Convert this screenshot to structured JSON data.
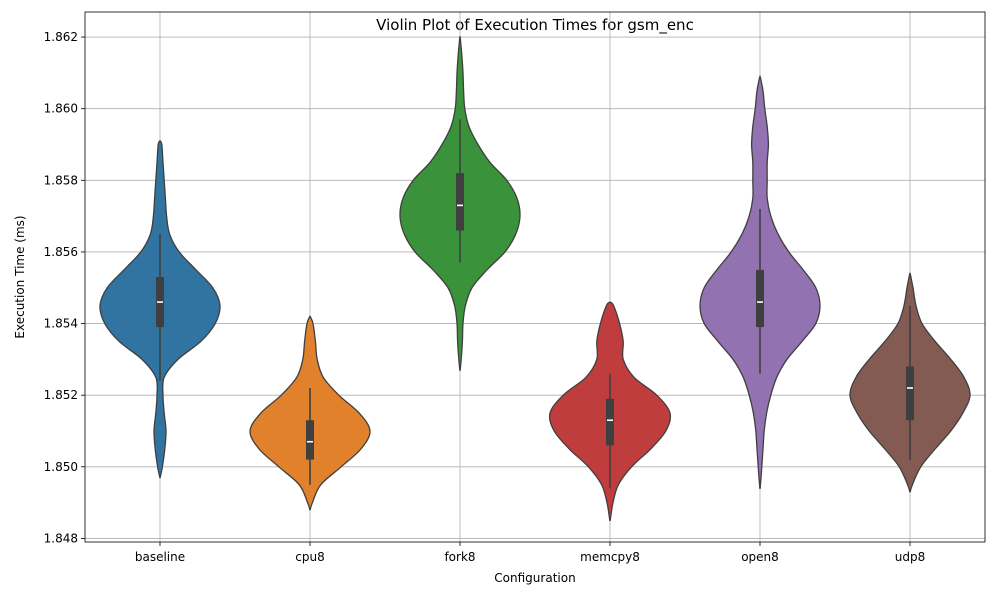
{
  "chart_data": {
    "type": "violin",
    "title": "Violin Plot of Execution Times for gsm_enc",
    "xlabel": "Configuration",
    "ylabel": "Execution Time (ms)",
    "categories": [
      "baseline",
      "cpu8",
      "fork8",
      "memcpy8",
      "open8",
      "udp8"
    ],
    "ylim": [
      1.8479,
      1.8627
    ],
    "yticks": [
      1.848,
      1.85,
      1.852,
      1.854,
      1.856,
      1.858,
      1.86,
      1.862
    ],
    "ytick_labels": [
      "1.848",
      "1.850",
      "1.852",
      "1.854",
      "1.856",
      "1.858",
      "1.860",
      "1.862"
    ],
    "grid": true,
    "colors": [
      "#3274a1",
      "#e1812c",
      "#3a923a",
      "#c03d3e",
      "#9372b2",
      "#845b53"
    ],
    "violins": [
      {
        "name": "baseline",
        "profile": [
          [
            1.8497,
            0.003
          ],
          [
            1.85,
            0.04
          ],
          [
            1.8505,
            0.08
          ],
          [
            1.851,
            0.1
          ],
          [
            1.8515,
            0.07
          ],
          [
            1.852,
            0.05
          ],
          [
            1.8525,
            0.07
          ],
          [
            1.853,
            0.3
          ],
          [
            1.8535,
            0.68
          ],
          [
            1.854,
            0.92
          ],
          [
            1.8545,
            1.0
          ],
          [
            1.855,
            0.88
          ],
          [
            1.8555,
            0.6
          ],
          [
            1.856,
            0.32
          ],
          [
            1.8565,
            0.16
          ],
          [
            1.857,
            0.11
          ],
          [
            1.8575,
            0.09
          ],
          [
            1.858,
            0.07
          ],
          [
            1.8585,
            0.05
          ],
          [
            1.859,
            0.03
          ],
          [
            1.8591,
            0.003
          ]
        ],
        "box": {
          "q1": 1.8539,
          "median": 1.8546,
          "q3": 1.8553,
          "whisker_low": 1.8524,
          "whisker_high": 1.8565
        }
      },
      {
        "name": "cpu8",
        "profile": [
          [
            1.8488,
            0.003
          ],
          [
            1.849,
            0.04
          ],
          [
            1.8495,
            0.18
          ],
          [
            1.85,
            0.52
          ],
          [
            1.8505,
            0.85
          ],
          [
            1.851,
            1.0
          ],
          [
            1.8515,
            0.82
          ],
          [
            1.852,
            0.48
          ],
          [
            1.8525,
            0.22
          ],
          [
            1.853,
            0.12
          ],
          [
            1.8535,
            0.09
          ],
          [
            1.854,
            0.05
          ],
          [
            1.8542,
            0.003
          ]
        ],
        "box": {
          "q1": 1.8502,
          "median": 1.8507,
          "q3": 1.8513,
          "whisker_low": 1.8495,
          "whisker_high": 1.8522
        }
      },
      {
        "name": "fork8",
        "profile": [
          [
            1.8527,
            0.003
          ],
          [
            1.853,
            0.02
          ],
          [
            1.8535,
            0.04
          ],
          [
            1.854,
            0.05
          ],
          [
            1.8545,
            0.09
          ],
          [
            1.855,
            0.2
          ],
          [
            1.8555,
            0.45
          ],
          [
            1.856,
            0.75
          ],
          [
            1.8565,
            0.93
          ],
          [
            1.857,
            1.0
          ],
          [
            1.8575,
            0.95
          ],
          [
            1.858,
            0.78
          ],
          [
            1.8585,
            0.5
          ],
          [
            1.859,
            0.3
          ],
          [
            1.8595,
            0.15
          ],
          [
            1.86,
            0.08
          ],
          [
            1.8605,
            0.06
          ],
          [
            1.861,
            0.05
          ],
          [
            1.8615,
            0.03
          ],
          [
            1.862,
            0.003
          ]
        ],
        "box": {
          "q1": 1.8566,
          "median": 1.8573,
          "q3": 1.8582,
          "whisker_low": 1.8557,
          "whisker_high": 1.8597
        }
      },
      {
        "name": "memcpy8",
        "profile": [
          [
            1.8485,
            0.003
          ],
          [
            1.849,
            0.05
          ],
          [
            1.8495,
            0.14
          ],
          [
            1.85,
            0.36
          ],
          [
            1.8505,
            0.68
          ],
          [
            1.851,
            0.93
          ],
          [
            1.8515,
            1.0
          ],
          [
            1.852,
            0.78
          ],
          [
            1.8525,
            0.4
          ],
          [
            1.853,
            0.22
          ],
          [
            1.8535,
            0.22
          ],
          [
            1.854,
            0.16
          ],
          [
            1.8545,
            0.06
          ],
          [
            1.8546,
            0.003
          ]
        ],
        "box": {
          "q1": 1.8506,
          "median": 1.8513,
          "q3": 1.8519,
          "whisker_low": 1.8494,
          "whisker_high": 1.8526
        }
      },
      {
        "name": "open8",
        "profile": [
          [
            1.8494,
            0.003
          ],
          [
            1.85,
            0.03
          ],
          [
            1.8505,
            0.05
          ],
          [
            1.851,
            0.07
          ],
          [
            1.8515,
            0.11
          ],
          [
            1.852,
            0.18
          ],
          [
            1.8525,
            0.28
          ],
          [
            1.853,
            0.45
          ],
          [
            1.8535,
            0.7
          ],
          [
            1.854,
            0.93
          ],
          [
            1.8545,
            1.0
          ],
          [
            1.855,
            0.93
          ],
          [
            1.8555,
            0.72
          ],
          [
            1.856,
            0.48
          ],
          [
            1.8565,
            0.3
          ],
          [
            1.857,
            0.18
          ],
          [
            1.8575,
            0.12
          ],
          [
            1.858,
            0.12
          ],
          [
            1.8585,
            0.12
          ],
          [
            1.859,
            0.14
          ],
          [
            1.8595,
            0.12
          ],
          [
            1.86,
            0.08
          ],
          [
            1.8605,
            0.05
          ],
          [
            1.8609,
            0.003
          ]
        ],
        "box": {
          "q1": 1.8539,
          "median": 1.8546,
          "q3": 1.8555,
          "whisker_low": 1.8526,
          "whisker_high": 1.8572
        }
      },
      {
        "name": "udp8",
        "profile": [
          [
            1.8493,
            0.003
          ],
          [
            1.8495,
            0.04
          ],
          [
            1.85,
            0.18
          ],
          [
            1.8505,
            0.42
          ],
          [
            1.851,
            0.68
          ],
          [
            1.8515,
            0.88
          ],
          [
            1.852,
            1.0
          ],
          [
            1.8525,
            0.9
          ],
          [
            1.853,
            0.68
          ],
          [
            1.8535,
            0.42
          ],
          [
            1.854,
            0.2
          ],
          [
            1.8545,
            0.1
          ],
          [
            1.855,
            0.05
          ],
          [
            1.8554,
            0.003
          ]
        ],
        "box": {
          "q1": 1.8513,
          "median": 1.8522,
          "q3": 1.8528,
          "whisker_low": 1.8502,
          "whisker_high": 1.8545
        }
      }
    ]
  }
}
